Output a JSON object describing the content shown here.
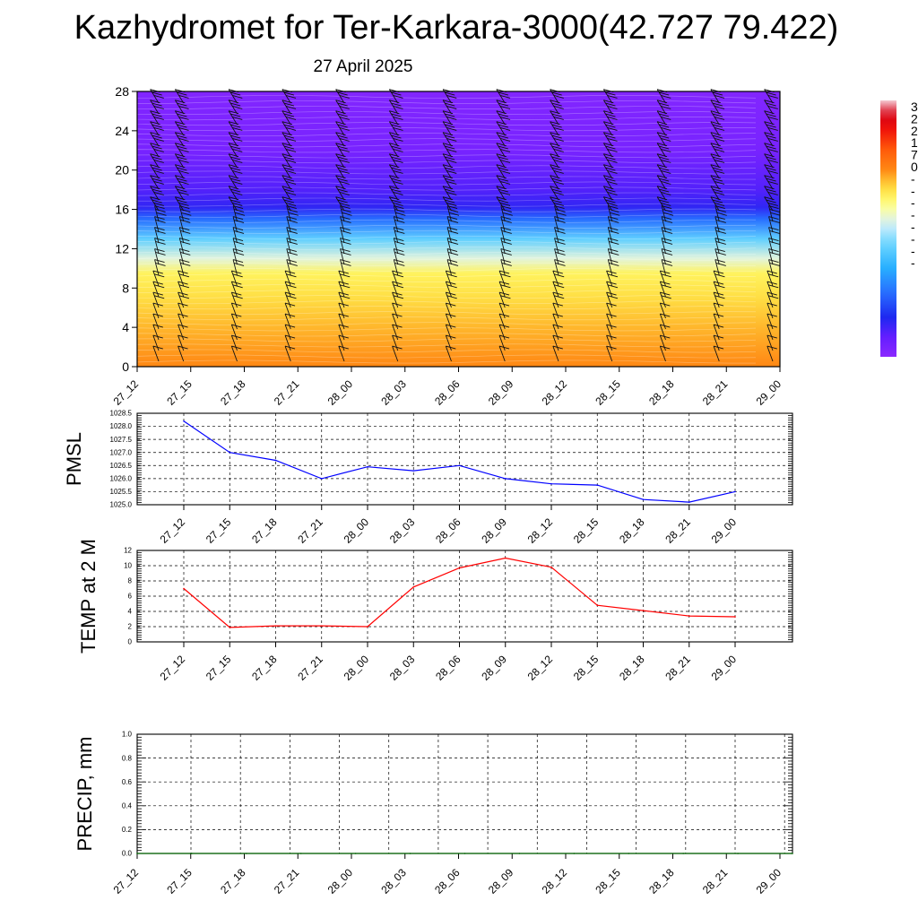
{
  "title": "Kazhydromet for Ter-Karkara-3000(42.727 79.422)",
  "subtitle": "27 April 2025",
  "chart_data": [
    {
      "type": "heatmap",
      "title": "",
      "ylim": [
        0,
        28
      ],
      "y_ticks": [
        "0",
        "4",
        "8",
        "12",
        "16",
        "20",
        "24",
        "28"
      ],
      "x_ticks": [
        "27_12",
        "27_15",
        "27_18",
        "27_21",
        "28_00",
        "28_03",
        "28_06",
        "28_09",
        "28_12",
        "28_15",
        "28_18",
        "28_21",
        "29_00"
      ],
      "field_profile": [
        {
          "y": 0,
          "value": 10
        },
        {
          "y": 4,
          "value": 6
        },
        {
          "y": 7,
          "value": 2
        },
        {
          "y": 9.5,
          "value": -1
        },
        {
          "y": 11,
          "value": -10
        },
        {
          "y": 13,
          "value": -22
        },
        {
          "y": 15,
          "value": -40
        },
        {
          "y": 16.2,
          "value": -52
        },
        {
          "y": 18,
          "value": -56
        },
        {
          "y": 22,
          "value": -62
        },
        {
          "y": 28,
          "value": -64
        }
      ],
      "wind_barbs": "present at every grid point",
      "colorbar_labels": [
        "3",
        "2",
        "2",
        "1",
        "7",
        "0",
        "-",
        "-",
        "-",
        "-",
        "-",
        "-",
        "-",
        "-"
      ]
    },
    {
      "type": "line",
      "ylabel": "PMSL",
      "ylim": [
        1025.0,
        1028.5
      ],
      "y_ticks": [
        "1025.0",
        "1025.5",
        "1026.0",
        "1026.5",
        "1027.0",
        "1027.5",
        "1028.0",
        "1028.5"
      ],
      "x": [
        "27_12",
        "27_15",
        "27_18",
        "27_21",
        "28_00",
        "28_03",
        "28_06",
        "28_09",
        "28_12",
        "28_15",
        "28_18",
        "28_21",
        "29_00"
      ],
      "series": [
        {
          "color": "#0000ff",
          "values": [
            1028.2,
            1027.0,
            1026.7,
            1026.0,
            1026.45,
            1026.3,
            1026.5,
            1026.0,
            1025.8,
            1025.75,
            1025.2,
            1025.1,
            1025.5
          ]
        }
      ],
      "grid": true
    },
    {
      "type": "line",
      "ylabel": "TEMP at 2 M",
      "ylim": [
        0,
        12
      ],
      "y_ticks": [
        "0",
        "2",
        "4",
        "6",
        "8",
        "10",
        "12"
      ],
      "x": [
        "27_12",
        "27_15",
        "27_18",
        "27_21",
        "28_00",
        "28_03",
        "28_06",
        "28_09",
        "28_12",
        "28_15",
        "28_18",
        "28_21",
        "29_00"
      ],
      "series": [
        {
          "color": "#ff0000",
          "values": [
            7.0,
            1.9,
            2.1,
            2.1,
            2.0,
            7.2,
            9.7,
            11.0,
            9.8,
            4.8,
            4.1,
            3.4,
            3.3
          ]
        }
      ],
      "grid": true
    },
    {
      "type": "line",
      "ylabel": "PRECIP, mm",
      "ylim": [
        0.0,
        1.0
      ],
      "y_ticks": [
        "0.0",
        "0.2",
        "0.4",
        "0.6",
        "0.8",
        "1.0"
      ],
      "x": [
        "27_12",
        "27_15",
        "27_18",
        "27_21",
        "28_00",
        "28_03",
        "28_06",
        "28_09",
        "28_12",
        "28_15",
        "28_18",
        "28_21",
        "29_00"
      ],
      "series": [
        {
          "color": "#006400",
          "values": [
            0,
            0,
            0,
            0,
            0,
            0,
            0,
            0,
            0,
            0,
            0,
            0,
            0
          ]
        }
      ],
      "grid": true
    }
  ]
}
